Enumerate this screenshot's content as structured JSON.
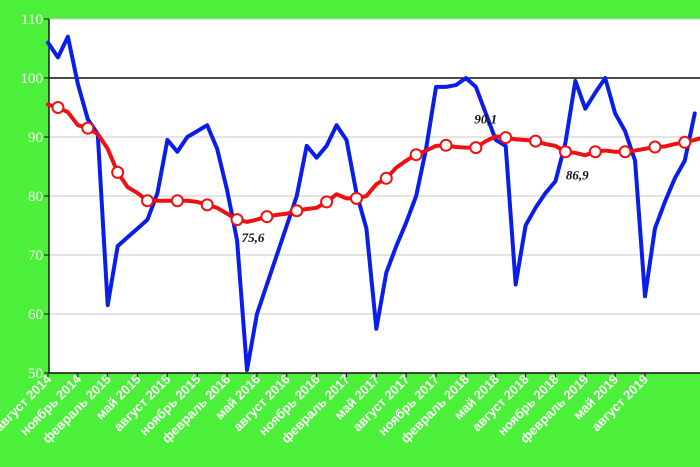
{
  "chart_data": {
    "type": "line",
    "background_color": "#4cf03a",
    "plot_background": "#ffffff",
    "ylim": [
      50,
      110
    ],
    "yticks": [
      "50",
      "60",
      "70",
      "80",
      "90",
      "100",
      "110"
    ],
    "reference_line": 100,
    "grid": "horizontal",
    "x_tick_labels": [
      "август 2014",
      "ноябрь 2014",
      "февраль 2015",
      "май 2015",
      "август 2015",
      "ноябрь 2015",
      "февраль 2016",
      "май 2016",
      "август 2016",
      "ноябрь 2016",
      "февраль 2017",
      "май 2017",
      "август 2017",
      "ноябрь 2017",
      "февраль 2018",
      "май 2018",
      "август 2018",
      "ноябрь 2018",
      "февраль 2019",
      "май 2019",
      "август 2019"
    ],
    "x_tick_index": [
      0,
      3,
      6,
      9,
      12,
      15,
      18,
      21,
      24,
      27,
      30,
      33,
      36,
      39,
      42,
      45,
      48,
      51,
      54,
      57,
      60
    ],
    "series": [
      {
        "color": "#0a1eea",
        "marker": "none",
        "values": [
          106,
          103.5,
          107,
          99,
          93,
          90.5,
          61.5,
          71.5,
          73,
          74.5,
          76,
          80.5,
          89.5,
          87.5,
          90,
          91,
          92,
          88,
          81,
          72.5,
          50.5,
          60,
          65,
          70,
          75,
          80,
          88.5,
          86.5,
          88.5,
          92,
          89.5,
          80.5,
          74.5,
          57.5,
          67,
          71.5,
          75.5,
          80,
          88,
          98.5,
          98.5,
          98.8,
          100,
          98.5,
          94,
          89.5,
          88.5,
          65,
          75,
          78,
          80.5,
          82.5,
          89,
          99.5,
          94.8,
          97.5,
          100,
          94,
          91,
          86,
          63,
          74.5,
          79,
          83,
          86,
          94
        ]
      },
      {
        "color": "#ee1111",
        "marker": "open-circle",
        "marker_every": 3,
        "marker_offset": 1,
        "values": [
          95.5,
          95,
          94.2,
          92,
          91.5,
          90.5,
          88,
          84,
          81.5,
          80.5,
          79.2,
          79.2,
          79.2,
          79.2,
          79.2,
          79,
          78.5,
          78,
          77,
          76,
          75.6,
          76,
          76.5,
          76.8,
          77,
          77.5,
          77.8,
          78,
          79,
          80.3,
          79.6,
          79.6,
          80,
          82,
          83,
          84.8,
          86,
          87,
          87.7,
          88.5,
          88.6,
          88.3,
          88.2,
          88.2,
          89.3,
          90.1,
          89.9,
          89.6,
          89.5,
          89.3,
          88.8,
          88.5,
          87.5,
          87.3,
          86.9,
          87.5,
          87.7,
          87.5,
          87.5,
          87.7,
          88,
          88.3,
          88.4,
          88.8,
          89.1,
          89.5,
          90
        ]
      }
    ],
    "annotations": [
      {
        "text": "75,6",
        "series": 1,
        "index": 20,
        "offset": [
          6,
          20
        ]
      },
      {
        "text": "90,1",
        "series": 1,
        "index": 45,
        "offset": [
          -10,
          -13
        ]
      },
      {
        "text": "86,9",
        "series": 1,
        "index": 54,
        "offset": [
          -8,
          24
        ]
      }
    ]
  }
}
